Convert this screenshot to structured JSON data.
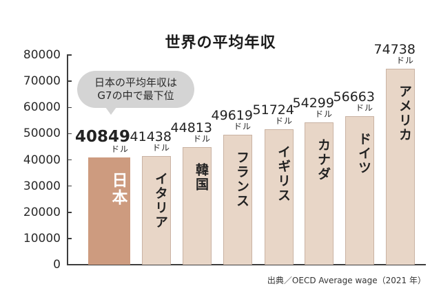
{
  "chart_data": {
    "type": "bar",
    "title": "世界の平均年収",
    "xlabel": "",
    "ylabel": "",
    "ylim": [
      0,
      80000
    ],
    "yticks": [
      0,
      10000,
      20000,
      30000,
      40000,
      50000,
      60000,
      70000,
      80000
    ],
    "ytick_labels": [
      "0",
      "10000",
      "20000",
      "30000",
      "40000",
      "50000",
      "60000",
      "70000",
      "80000"
    ],
    "grid": false,
    "legend": null,
    "categories": [
      "日本",
      "イタリア",
      "韓国",
      "フランス",
      "イギリス",
      "カナダ",
      "ドイツ",
      "アメリカ"
    ],
    "values": [
      40849,
      41438,
      44813,
      49619,
      51724,
      54299,
      56663,
      74738
    ],
    "value_labels": [
      "40849",
      "41438",
      "44813",
      "49619",
      "51724",
      "54299",
      "56663",
      "74738"
    ],
    "unit": "ドル",
    "highlight_category": "日本",
    "annotations": [
      "日本の平均年収は",
      "G7の中で最下位"
    ],
    "source": "出典／OECD Average wage（2021 年）"
  },
  "colors": {
    "highlight_bar": "#cd9b7f",
    "bar": "#e8d6c7",
    "bar_border": "#c9b2a2",
    "bubble": "#d4d4d4",
    "axis": "#3c3c3c"
  },
  "bubble": {
    "line1": "日本の平均年収は",
    "line2": "G7の中で最下位"
  }
}
